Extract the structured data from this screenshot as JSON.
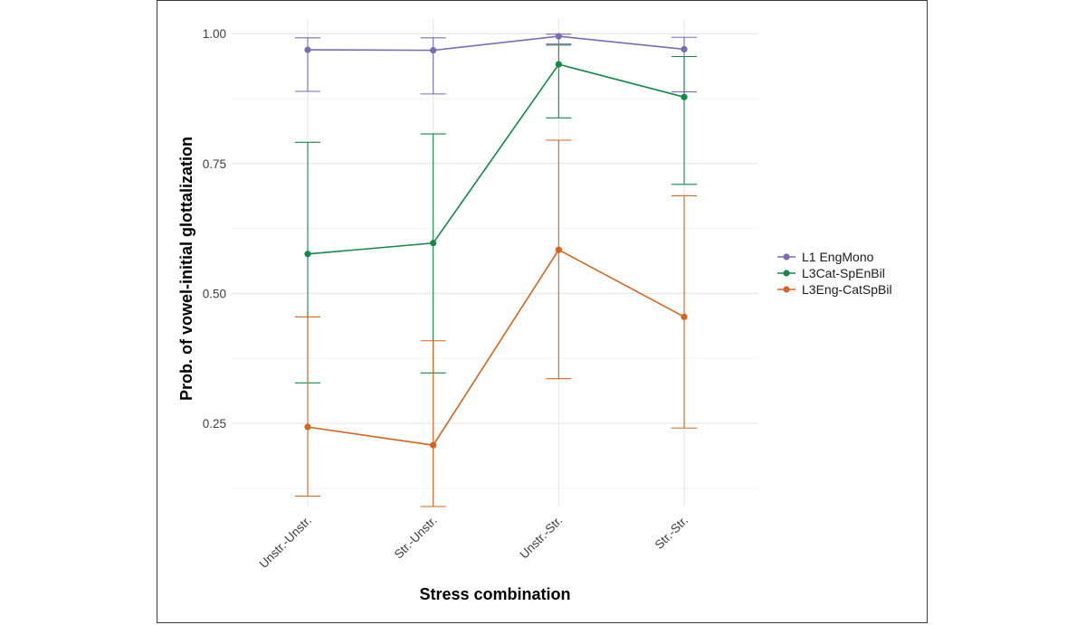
{
  "chart_data": {
    "type": "line",
    "xlabel": "Stress combination",
    "ylabel": "Prob. of vowel-initial glottalization",
    "categories": [
      "Unstr.-Unstr.",
      "Str.-Unstr.",
      "Unstr.-Str.",
      "Str.-Str."
    ],
    "ylim": [
      0.09,
      1.03
    ],
    "yticks": [
      0.25,
      0.5,
      0.75,
      1.0
    ],
    "yticklabels": [
      "0.25",
      "0.50",
      "0.75",
      "1.00"
    ],
    "grid": true,
    "legend_position": "right",
    "series": [
      {
        "name": "L1 EngMono",
        "color": "#7a6bb5",
        "values": [
          0.969,
          0.968,
          0.995,
          0.97
        ],
        "lower": [
          0.889,
          0.884,
          0.98,
          0.888
        ],
        "upper": [
          0.992,
          0.992,
          0.999,
          0.993
        ]
      },
      {
        "name": "L3Cat-SpEnBil",
        "color": "#14894a",
        "values": [
          0.576,
          0.597,
          0.941,
          0.878
        ],
        "lower": [
          0.328,
          0.347,
          0.838,
          0.71
        ],
        "upper": [
          0.791,
          0.807,
          0.978,
          0.956
        ]
      },
      {
        "name": "L3Eng-CatSpBil",
        "color": "#d4651e",
        "values": [
          0.243,
          0.208,
          0.584,
          0.455
        ],
        "lower": [
          0.11,
          0.09,
          0.336,
          0.241
        ],
        "upper": [
          0.455,
          0.409,
          0.795,
          0.688
        ]
      }
    ]
  }
}
